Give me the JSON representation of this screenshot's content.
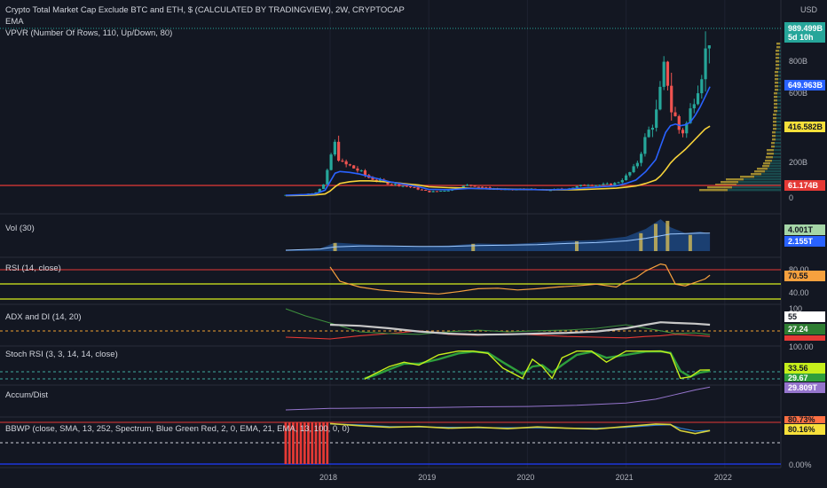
{
  "header": {
    "title": "Crypto Total Market Cap Exclude BTC and ETH, $ (CALCULATED BY TRADINGVIEW), 2W, CRYPTOCAP",
    "ema_label": "EMA",
    "vpvr_label": "VPVR (Number Of Rows, 110, Up/Down, 80)",
    "currency": "USD"
  },
  "x_axis": {
    "ticks": [
      "2018",
      "2019",
      "2020",
      "2021",
      "2022"
    ]
  },
  "colors": {
    "up": "#26a69a",
    "down": "#ef5350",
    "ema_fast": "#2962ff",
    "ema_slow": "#f7d33a",
    "rsi": "#f7a13e",
    "adx": "#c8c8c8",
    "di_plus": "#3d8f3d",
    "di_minus": "#e53935",
    "stoch_k": "#c6ef1b",
    "stoch_d": "#2e9f3c",
    "ad": "#9575cd",
    "bbwp": "#e53935"
  },
  "chart_data": [
    {
      "type": "line",
      "title": "Crypto Total Market Cap Exclude BTC and ETH, $ (CALCULATED BY TRADINGVIEW), 2W, CRYPTOCAP",
      "panel": "price",
      "x": [
        2017.55,
        2017.65,
        2017.75,
        2017.85,
        2017.95,
        2018.0,
        2018.05,
        2018.1,
        2018.2,
        2018.3,
        2018.4,
        2018.5,
        2018.6,
        2018.7,
        2018.8,
        2018.9,
        2019.0,
        2019.2,
        2019.4,
        2019.5,
        2019.6,
        2019.8,
        2020.0,
        2020.2,
        2020.4,
        2020.5,
        2020.6,
        2020.7,
        2020.8,
        2020.9,
        2021.0,
        2021.1,
        2021.2,
        2021.3,
        2021.35,
        2021.4,
        2021.45,
        2021.5,
        2021.55,
        2021.6,
        2021.65,
        2021.7,
        2021.75,
        2021.8,
        2021.85
      ],
      "close": [
        12,
        14,
        17,
        25,
        80,
        230,
        310,
        200,
        180,
        150,
        110,
        95,
        78,
        70,
        60,
        45,
        30,
        40,
        70,
        62,
        50,
        42,
        45,
        40,
        50,
        60,
        75,
        70,
        72,
        80,
        120,
        180,
        350,
        470,
        620,
        800,
        520,
        460,
        370,
        400,
        500,
        620,
        700,
        830,
        960
      ],
      "ema_fast": [
        10,
        12,
        14,
        18,
        40,
        90,
        140,
        150,
        145,
        135,
        120,
        105,
        90,
        80,
        70,
        60,
        45,
        43,
        50,
        50,
        48,
        45,
        44,
        42,
        45,
        50,
        55,
        58,
        62,
        66,
        80,
        100,
        150,
        220,
        300,
        380,
        420,
        430,
        420,
        425,
        440,
        480,
        530,
        590,
        650
      ],
      "ema_slow": [
        8,
        9,
        10,
        12,
        18,
        35,
        60,
        80,
        90,
        95,
        95,
        92,
        88,
        82,
        76,
        70,
        60,
        55,
        52,
        50,
        48,
        46,
        44,
        42,
        42,
        43,
        45,
        47,
        49,
        52,
        58,
        65,
        80,
        100,
        125,
        160,
        200,
        230,
        255,
        280,
        310,
        340,
        370,
        400,
        417
      ],
      "annotations": [
        "989.499B",
        "5d 10h",
        "649.963B",
        "416.582B",
        "61.174B",
        "800B",
        "600B",
        "200B",
        "0"
      ]
    },
    {
      "type": "bar",
      "title": "Vol (30)",
      "panel": "volume",
      "annotations": [
        "4.001T",
        "2.155T"
      ]
    },
    {
      "type": "line",
      "title": "RSI (14, close)",
      "panel": "rsi",
      "x": [
        2018.0,
        2018.1,
        2018.2,
        2018.3,
        2018.5,
        2018.7,
        2018.9,
        2019.1,
        2019.3,
        2019.5,
        2019.7,
        2019.9,
        2020.1,
        2020.3,
        2020.5,
        2020.7,
        2020.9,
        2021.0,
        2021.1,
        2021.2,
        2021.3,
        2021.35,
        2021.4,
        2021.5,
        2021.6,
        2021.7,
        2021.8,
        2021.85
      ],
      "values": [
        85,
        60,
        55,
        50,
        45,
        42,
        40,
        38,
        42,
        47,
        48,
        45,
        47,
        50,
        52,
        55,
        50,
        60,
        66,
        78,
        86,
        90,
        88,
        55,
        52,
        58,
        64,
        70.55
      ],
      "annotations": [
        "80.00",
        "70.55",
        "40.00"
      ]
    },
    {
      "type": "line",
      "title": "ADX and DI (14, 20)",
      "panel": "adx",
      "annotations": [
        "100",
        "55",
        "27.24"
      ]
    },
    {
      "type": "line",
      "title": "Stoch RSI (3, 3, 14, 14, close)",
      "panel": "stoch",
      "annotations": [
        "100.00",
        "33.56",
        "29.67"
      ]
    },
    {
      "type": "line",
      "title": "Accum/Dist",
      "panel": "accum",
      "annotations": [
        "29.809T"
      ]
    },
    {
      "type": "line",
      "title": "BBWP (close, SMA, 13, 252, Spectrum, Blue Green Red, 2, 0, EMA, 21, EMA, 13, 100, 0, 0)",
      "panel": "bbwp",
      "annotations": [
        "80.73%",
        "80.16%",
        "0.00%"
      ]
    }
  ]
}
